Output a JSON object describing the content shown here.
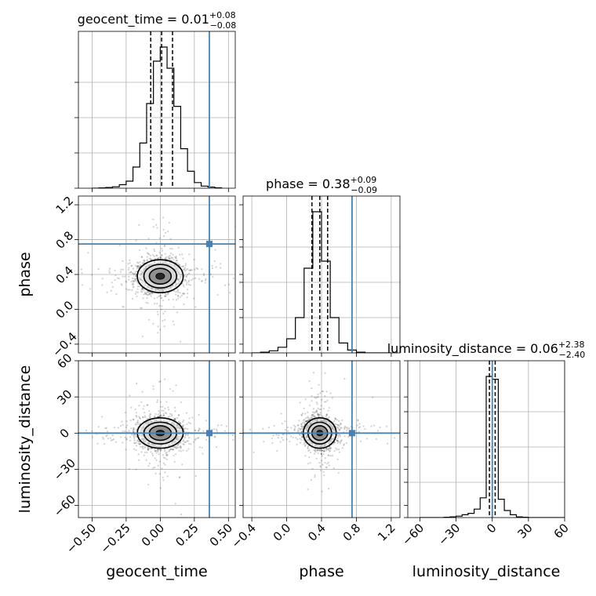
{
  "chart_data": {
    "type": "corner",
    "grid": true,
    "truth_color": "#4682b4",
    "parameters": [
      {
        "name": "geocent_time",
        "label": "geocent_time",
        "range": [
          -0.6,
          0.55
        ],
        "ticks": [
          -0.5,
          -0.25,
          0.0,
          0.25,
          0.5
        ],
        "tick_labels": [
          "−0.50",
          "−0.25",
          "0.00",
          "0.25",
          "0.50"
        ],
        "truth": 0.36
      },
      {
        "name": "phase",
        "label": "phase",
        "range": [
          -0.5,
          1.3
        ],
        "ticks": [
          -0.4,
          0.0,
          0.4,
          0.8,
          1.2
        ],
        "tick_labels": [
          "−0.4",
          "0.0",
          "0.4",
          "0.8",
          "1.2"
        ],
        "truth": 0.75
      },
      {
        "name": "luminosity_distance",
        "label": "luminosity_distance",
        "range": [
          -70,
          60
        ],
        "ticks": [
          -60,
          -30,
          0,
          30,
          60
        ],
        "tick_labels": [
          "−60",
          "−30",
          "0",
          "30",
          "60"
        ],
        "truth": 0.0
      }
    ],
    "marginals": [
      {
        "param": "geocent_time",
        "title_main": "geocent_time = 0.01",
        "title_sup": "+0.08",
        "title_sub": "−0.08",
        "quantiles": [
          -0.07,
          0.01,
          0.09
        ],
        "bins": [
          -0.5,
          -0.45,
          -0.4,
          -0.35,
          -0.3,
          -0.25,
          -0.2,
          -0.15,
          -0.1,
          -0.05,
          0.0,
          0.05,
          0.1,
          0.15,
          0.2,
          0.25,
          0.3,
          0.35,
          0.4,
          0.45
        ],
        "counts": [
          0.0,
          0.002,
          0.005,
          0.01,
          0.025,
          0.05,
          0.15,
          0.32,
          0.6,
          0.9,
          1.0,
          0.85,
          0.58,
          0.28,
          0.12,
          0.04,
          0.015,
          0.008,
          0.003
        ]
      },
      {
        "param": "phase",
        "title_main": "phase = 0.38",
        "title_sup": "+0.09",
        "title_sub": "−0.09",
        "quantiles": [
          0.29,
          0.38,
          0.47
        ],
        "bins": [
          -0.4,
          -0.3,
          -0.2,
          -0.1,
          0.0,
          0.1,
          0.2,
          0.3,
          0.4,
          0.5,
          0.6,
          0.7,
          0.8,
          0.9,
          1.0,
          1.1,
          1.2
        ],
        "counts": [
          0.0,
          0.005,
          0.015,
          0.04,
          0.1,
          0.25,
          0.6,
          1.0,
          0.65,
          0.25,
          0.07,
          0.02,
          0.005,
          0.0,
          0.0,
          0.0
        ]
      },
      {
        "param": "luminosity_distance",
        "title_main": "luminosity_distance = 0.06",
        "title_sup": "+2.38",
        "title_sub": "−2.40",
        "quantiles": [
          -2.34,
          0.06,
          2.44
        ],
        "bins": [
          -60,
          -55,
          -50,
          -45,
          -40,
          -35,
          -30,
          -25,
          -20,
          -15,
          -10,
          -5,
          0,
          5,
          10,
          15,
          20,
          25,
          30,
          35,
          40,
          45,
          50,
          55,
          60
        ],
        "counts": [
          0.0,
          0.0,
          0.0,
          0.0,
          0.002,
          0.005,
          0.01,
          0.02,
          0.03,
          0.06,
          0.14,
          1.0,
          0.98,
          0.13,
          0.05,
          0.02,
          0.005,
          0.002,
          0.0,
          0.0,
          0.0,
          0.0,
          0.0,
          0.0
        ]
      }
    ],
    "joint_2d": [
      {
        "x": "geocent_time",
        "y": "phase",
        "center": [
          0.0,
          0.38
        ],
        "sigma": [
          0.08,
          0.09
        ]
      },
      {
        "x": "geocent_time",
        "y": "luminosity_distance",
        "center": [
          0.0,
          0.06
        ],
        "sigma": [
          0.08,
          6.0
        ]
      },
      {
        "x": "phase",
        "y": "luminosity_distance",
        "center": [
          0.38,
          0.06
        ],
        "sigma": [
          0.09,
          6.0
        ]
      }
    ]
  }
}
